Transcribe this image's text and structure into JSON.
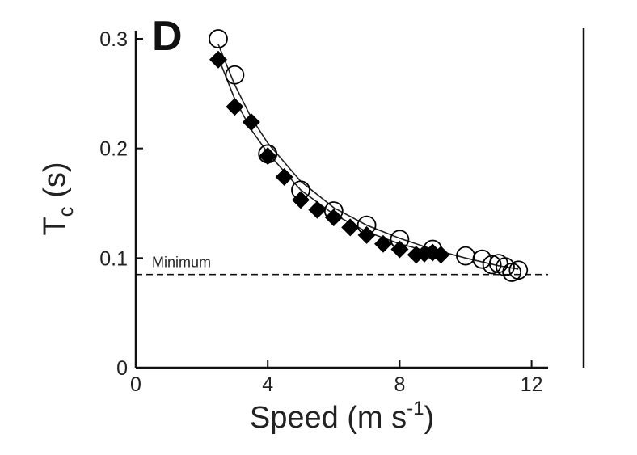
{
  "chart_data": {
    "type": "scatter",
    "panel_label": "D",
    "xlabel": "Speed (m s",
    "xlabel_sup": "-1",
    "xlabel_end": ")",
    "ylabel": "T",
    "ylabel_sub": "c",
    "ylabel_unit": " (s)",
    "xlim": [
      0,
      12.5
    ],
    "ylim": [
      0,
      0.31
    ],
    "xticks": [
      0,
      4,
      8,
      12
    ],
    "xtick_labels": [
      "0",
      "4",
      "8",
      "12"
    ],
    "yticks": [
      0,
      0.1,
      0.2,
      0.3
    ],
    "ytick_labels": [
      "0",
      "0.1",
      "0.2",
      "0.3"
    ],
    "grid": false,
    "reference_line": {
      "y": 0.085,
      "label": "Minimum",
      "style": "dashed"
    },
    "series": [
      {
        "marker": "filled-diamond",
        "color": "#000000",
        "x": [
          2.5,
          3.0,
          3.5,
          4.0,
          4.5,
          5.0,
          5.5,
          6.0,
          6.5,
          7.0,
          7.5,
          8.0,
          8.5,
          8.75,
          9.0,
          9.25
        ],
        "y": [
          0.281,
          0.238,
          0.224,
          0.193,
          0.174,
          0.153,
          0.144,
          0.137,
          0.128,
          0.121,
          0.113,
          0.108,
          0.103,
          0.104,
          0.105,
          0.103
        ]
      },
      {
        "marker": "open-circle",
        "color": "#000000",
        "x": [
          2.5,
          3.0,
          4.0,
          5.0,
          6.0,
          7.0,
          8.0,
          9.0,
          10.0,
          10.5,
          10.8,
          11.0,
          11.2,
          11.4,
          11.6
        ],
        "y": [
          0.3,
          0.267,
          0.195,
          0.162,
          0.143,
          0.13,
          0.117,
          0.108,
          0.102,
          0.099,
          0.094,
          0.095,
          0.092,
          0.087,
          0.089
        ]
      }
    ],
    "fit_curves": [
      {
        "x": [
          2.5,
          3.0,
          3.5,
          4.0,
          5.0,
          6.0,
          7.0,
          8.0,
          9.0
        ],
        "y": [
          0.283,
          0.245,
          0.217,
          0.196,
          0.162,
          0.14,
          0.124,
          0.113,
          0.105
        ]
      },
      {
        "x": [
          2.5,
          3.0,
          3.5,
          4.0,
          5.0,
          6.0,
          7.0,
          8.0,
          9.0,
          10.0,
          11.0,
          11.6
        ],
        "y": [
          0.295,
          0.258,
          0.228,
          0.205,
          0.17,
          0.146,
          0.13,
          0.118,
          0.108,
          0.1,
          0.093,
          0.09
        ]
      }
    ]
  }
}
